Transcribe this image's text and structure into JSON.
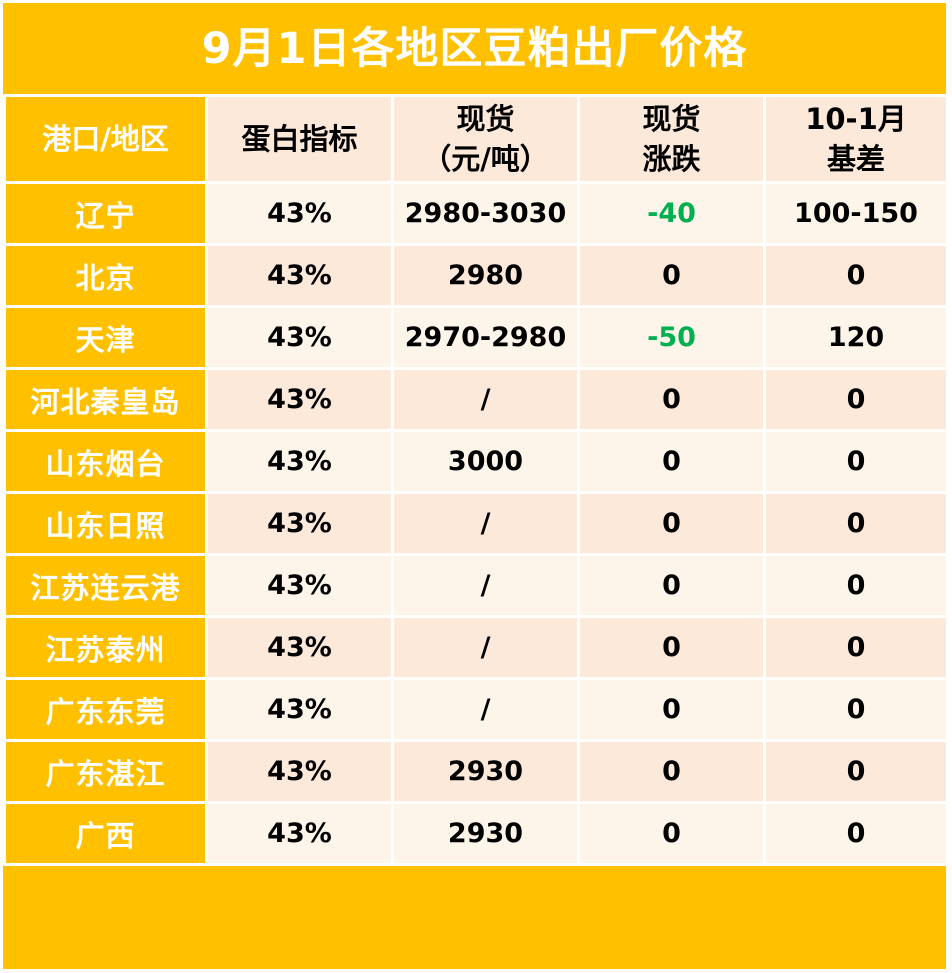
{
  "title": "9月1日各地区豆粕出厂价格",
  "colors": {
    "accent": "#FFC000",
    "row_light": "#FDF4EA",
    "row_dark": "#FDE9D9",
    "down": "#00B050"
  },
  "headers": {
    "region": "港口/地区",
    "protein": "蛋白指标",
    "spot_line1": "现货",
    "spot_line2": "（元/吨）",
    "change_line1": "现货",
    "change_line2": "涨跌",
    "basis_line1": "10-1月",
    "basis_line2": "基差"
  },
  "rows": [
    {
      "region": "辽宁",
      "protein": "43%",
      "spot": "2980-3030",
      "change": "-40",
      "basis": "100-150"
    },
    {
      "region": "北京",
      "protein": "43%",
      "spot": "2980",
      "change": "0",
      "basis": "0"
    },
    {
      "region": "天津",
      "protein": "43%",
      "spot": "2970-2980",
      "change": "-50",
      "basis": "120"
    },
    {
      "region": "河北秦皇岛",
      "protein": "43%",
      "spot": "/",
      "change": "0",
      "basis": "0"
    },
    {
      "region": "山东烟台",
      "protein": "43%",
      "spot": "3000",
      "change": "0",
      "basis": "0"
    },
    {
      "region": "山东日照",
      "protein": "43%",
      "spot": "/",
      "change": "0",
      "basis": "0"
    },
    {
      "region": "江苏连云港",
      "protein": "43%",
      "spot": "/",
      "change": "0",
      "basis": "0"
    },
    {
      "region": "江苏泰州",
      "protein": "43%",
      "spot": "/",
      "change": "0",
      "basis": "0"
    },
    {
      "region": "广东东莞",
      "protein": "43%",
      "spot": "/",
      "change": "0",
      "basis": "0"
    },
    {
      "region": "广东湛江",
      "protein": "43%",
      "spot": "2930",
      "change": "0",
      "basis": "0"
    },
    {
      "region": "广西",
      "protein": "43%",
      "spot": "2930",
      "change": "0",
      "basis": "0"
    }
  ]
}
